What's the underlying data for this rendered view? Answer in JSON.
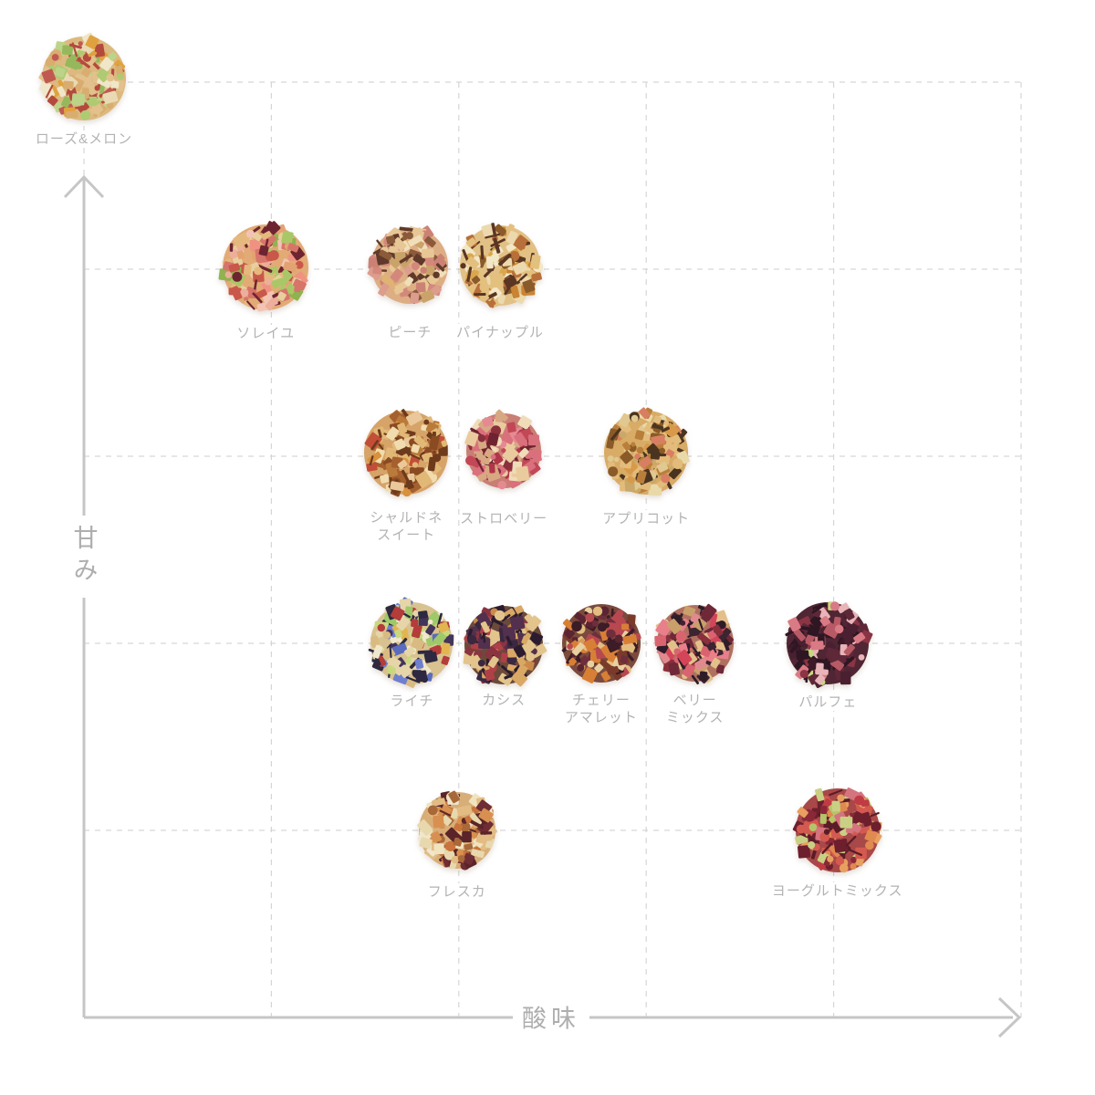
{
  "page": {
    "background": "#ffffff"
  },
  "colors": {
    "grid": "#d6d6d6",
    "axis": "#c6c6c6",
    "item_label": "#b3b3b3",
    "axis_label": "#aeaeae"
  },
  "chart_data": {
    "type": "scatter",
    "title": "",
    "xlabel": "酸味",
    "ylabel": "甘み",
    "x_range": [
      0,
      5
    ],
    "y_range": [
      0,
      5
    ],
    "grid": "dashed, no tick labels",
    "legend": "none",
    "points": [
      {
        "id": "rose-melon",
        "label_lines": [
          "ローズ&メロン"
        ],
        "acidity": 0.0,
        "sweetness": 5.02,
        "radius": 50,
        "label_dy": 57,
        "base": "#dcb97f",
        "palette": [
          "#e2c18c",
          "#d9ad6f",
          "#e9dab4",
          "#d9ad6f",
          "#e2c18c",
          "#aecb72",
          "#b44a3e",
          "#e0a23f",
          "#bcd489",
          "#c05a50",
          "#f0e6c8",
          "#96b85c"
        ]
      },
      {
        "id": "soleil",
        "label_lines": [
          "ソレイユ"
        ],
        "acidity": 0.97,
        "sweetness": 4.01,
        "radius": 51,
        "label_dy": 63,
        "base": "#e2ab75",
        "palette": [
          "#e5b97e",
          "#edae9b",
          "#e2a271",
          "#ef9282",
          "#aac768",
          "#e8cf9d",
          "#d7756a",
          "#6e2430",
          "#e5b97e",
          "#f3c4b4",
          "#c9584a",
          "#8fb34f"
        ]
      },
      {
        "id": "peach",
        "label_lines": [
          "ピーチ"
        ],
        "acidity": 1.74,
        "sweetness": 4.02,
        "radius": 46,
        "label_dy": 64,
        "base": "#ddae84",
        "palette": [
          "#e7c795",
          "#dc9d8d",
          "#f0dfba",
          "#cb8275",
          "#e0b273",
          "#5f3a2a",
          "#e7c795",
          "#d4887c",
          "#caa36a",
          "#8a5a3a"
        ]
      },
      {
        "id": "pineapple",
        "label_lines": [
          "パイナップル"
        ],
        "acidity": 2.22,
        "sweetness": 4.02,
        "radius": 48,
        "label_dy": 64,
        "base": "#e2c186",
        "palette": [
          "#ecd9ad",
          "#e3c07e",
          "#d9a84d",
          "#f2e7c6",
          "#c98433",
          "#e3c07e",
          "#5a3523",
          "#ecd9ad",
          "#b96f3a",
          "#8a5a2a"
        ]
      },
      {
        "id": "chardonnay-sweet",
        "label_lines": [
          "シャルドネ",
          "スイート"
        ],
        "acidity": 1.72,
        "sweetness": 3.02,
        "radius": 50,
        "label_dy": 62,
        "base": "#d6a368",
        "palette": [
          "#e2b877",
          "#a5602e",
          "#f0dcae",
          "#8a4a22",
          "#d8913c",
          "#e2b877",
          "#c24e38",
          "#eac899",
          "#b97a3a",
          "#6e3a1c"
        ]
      },
      {
        "id": "strawberry",
        "label_lines": [
          "ストロベリー"
        ],
        "acidity": 2.24,
        "sweetness": 3.03,
        "radius": 45,
        "label_dy": 65,
        "base": "#c97f74",
        "palette": [
          "#d9707c",
          "#c24857",
          "#e9cb9e",
          "#8a2f3c",
          "#f0dcb8",
          "#d9707c",
          "#d8a883",
          "#b03648",
          "#e58a93",
          "#6e2430"
        ]
      },
      {
        "id": "apricot",
        "label_lines": [
          "アプリコット"
        ],
        "acidity": 3.0,
        "sweetness": 3.02,
        "radius": 50,
        "label_dy": 63,
        "base": "#d8ab66",
        "palette": [
          "#e3bc7c",
          "#d89a48",
          "#e9d9a8",
          "#c9a86a",
          "#8a5a28",
          "#e3bc7c",
          "#d87f62",
          "#4a3420",
          "#e0c890",
          "#b97f3a"
        ]
      },
      {
        "id": "lychee",
        "label_lines": [
          "ライチ"
        ],
        "acidity": 1.75,
        "sweetness": 2.0,
        "radius": 49,
        "label_dy": 54,
        "base": "#d8c28f",
        "palette": [
          "#e6d5a9",
          "#d9ba80",
          "#5a6cbe",
          "#9fc968",
          "#2e2840",
          "#e3b44f",
          "#e6d5a9",
          "#b43c3a",
          "#c9d87f",
          "#6e7fd0",
          "#f0e8cc",
          "#42345a"
        ]
      },
      {
        "id": "cassis",
        "label_lines": [
          "カシス"
        ],
        "acidity": 2.24,
        "sweetness": 1.99,
        "radius": 47,
        "label_dy": 51,
        "base": "#6b4a3a",
        "palette": [
          "#3a2840",
          "#52304e",
          "#e3c48c",
          "#2a1c2e",
          "#d9a865",
          "#b04048",
          "#3a2840",
          "#c98a4a",
          "#8a3440",
          "#e3c48c"
        ]
      },
      {
        "id": "cherry-amaretto",
        "label_lines": [
          "チェリー",
          "アマレット"
        ],
        "acidity": 2.76,
        "sweetness": 2.0,
        "radius": 47,
        "label_dy": 53,
        "base": "#7a4a3c",
        "palette": [
          "#5a2432",
          "#e3bc80",
          "#6e2e3c",
          "#d89a55",
          "#3c1c26",
          "#5a2432",
          "#d87f36",
          "#b84850",
          "#e8d0a0",
          "#7a3a2a"
        ]
      },
      {
        "id": "berry-mix",
        "label_lines": [
          "ベリー",
          "ミックス"
        ],
        "acidity": 3.26,
        "sweetness": 2.0,
        "radius": 46,
        "label_dy": 53,
        "base": "#b07060",
        "palette": [
          "#e3c08a",
          "#e08a90",
          "#3c2430",
          "#d96470",
          "#6e2838",
          "#e3c08a",
          "#2e1c28",
          "#e87f8a",
          "#d4455a",
          "#c9a06a",
          "#8a2f3c"
        ]
      },
      {
        "id": "parfait",
        "label_lines": [
          "パルフェ"
        ],
        "acidity": 3.97,
        "sweetness": 2.0,
        "radius": 49,
        "label_dy": 55,
        "base": "#502634",
        "palette": [
          "#4a2030",
          "#5e2838",
          "#2e1622",
          "#d97a84",
          "#4a2030",
          "#3c1a28",
          "#c9d87f",
          "#e8b4b8",
          "#8a3444",
          "#5e2838",
          "#b85a66",
          "#2e1622"
        ]
      },
      {
        "id": "fresca",
        "label_lines": [
          "フレスカ"
        ],
        "acidity": 1.99,
        "sweetness": 1.0,
        "radius": 46,
        "label_dy": 58,
        "base": "#d8ae78",
        "palette": [
          "#e3bc84",
          "#f0e4c0",
          "#6e2c34",
          "#d89050",
          "#e8d8ae",
          "#e3bc84",
          "#5a2428",
          "#c9743c",
          "#efe8cf",
          "#a86838"
        ]
      },
      {
        "id": "yogurt-mix",
        "label_lines": [
          "ヨーグルトミックス"
        ],
        "acidity": 4.02,
        "sweetness": 1.0,
        "radius": 50,
        "label_dy": 57,
        "base": "#a84848",
        "palette": [
          "#d45a50",
          "#e08a50",
          "#6e1f2e",
          "#b5c46a",
          "#d4747e",
          "#8a2838",
          "#c9d084",
          "#d45a50",
          "#e8a060",
          "#5a1c26",
          "#c03c44"
        ]
      }
    ]
  }
}
